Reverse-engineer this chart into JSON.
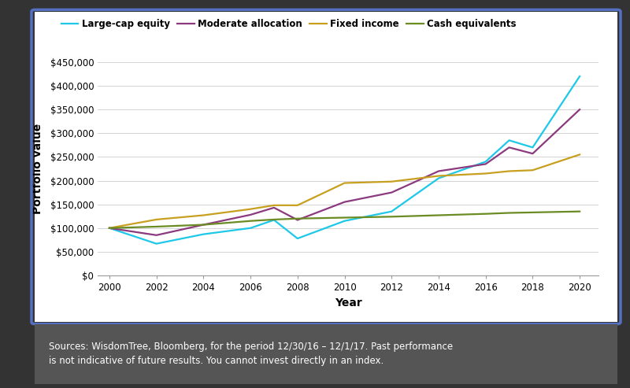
{
  "years": [
    2000,
    2002,
    2004,
    2006,
    2007,
    2008,
    2010,
    2012,
    2014,
    2016,
    2017,
    2018,
    2020
  ],
  "large_cap_equity": [
    100000,
    67000,
    87000,
    100000,
    117000,
    78000,
    115000,
    135000,
    205000,
    240000,
    285000,
    270000,
    420000
  ],
  "moderate_allocation": [
    100000,
    85000,
    107000,
    128000,
    143000,
    117000,
    155000,
    175000,
    220000,
    235000,
    270000,
    257000,
    350000
  ],
  "fixed_income": [
    100000,
    118000,
    127000,
    140000,
    148000,
    148000,
    195000,
    198000,
    210000,
    215000,
    220000,
    222000,
    255000
  ],
  "cash_equivalents": [
    100000,
    103000,
    107000,
    115000,
    118000,
    120000,
    122000,
    124000,
    127000,
    130000,
    132000,
    133000,
    135000
  ],
  "colors": {
    "large_cap_equity": "#1EC8E8",
    "moderate_allocation": "#8B3A7E",
    "fixed_income": "#C8A020",
    "cash_equivalents": "#6A8C23"
  },
  "legend_labels": [
    "Large-cap equity",
    "Moderate allocation",
    "Fixed income",
    "Cash equivalents"
  ],
  "xlabel": "Year",
  "ylabel": "Portfolio value",
  "ylim": [
    0,
    450000
  ],
  "yticks": [
    0,
    50000,
    100000,
    150000,
    200000,
    250000,
    300000,
    350000,
    400000,
    450000
  ],
  "xticks": [
    2000,
    2002,
    2004,
    2006,
    2008,
    2010,
    2012,
    2014,
    2016,
    2018,
    2020
  ],
  "bg_chart": "#FFFFFF",
  "bg_outer": "#333333",
  "footnote": "Sources: WisdomTree, Bloomberg, for the period 12/30/16 – 12/1/17. Past performance\nis not indicative of future results. You cannot invest directly in an index.",
  "footnote_bg": "#555555",
  "line_width": 1.6,
  "card_bg": "#FFFFFF",
  "card_border": "#5570C0"
}
